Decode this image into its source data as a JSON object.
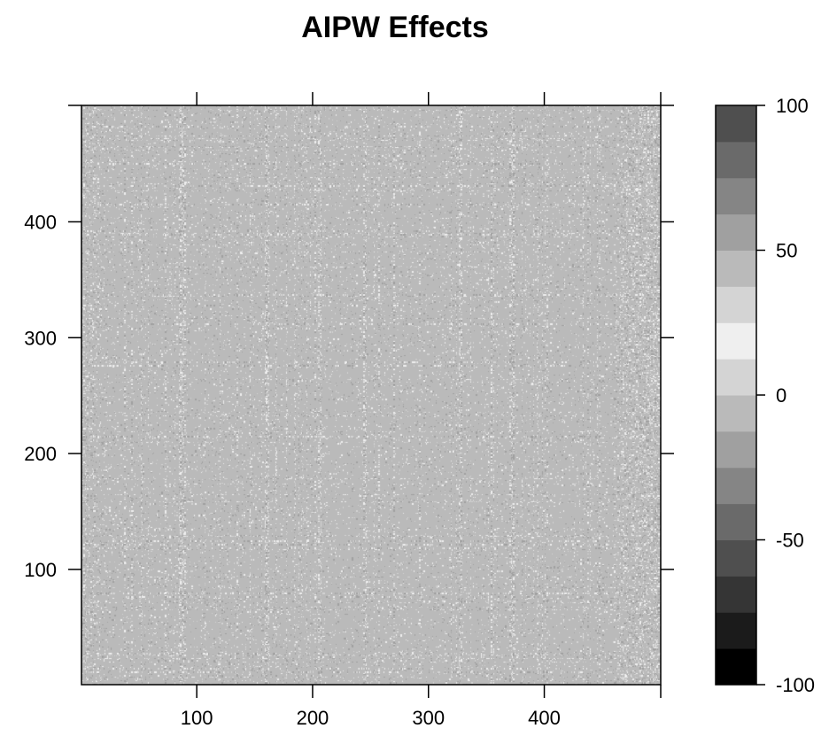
{
  "chart_data": {
    "type": "heatmap",
    "title": "AIPW Effects",
    "xlabel": "",
    "ylabel": "",
    "xlim": [
      1,
      500
    ],
    "ylim": [
      1,
      500
    ],
    "x_ticks": [
      100,
      200,
      300,
      400
    ],
    "y_ticks": [
      100,
      200,
      300,
      400
    ],
    "x_tick_labels": [
      "100",
      "200",
      "300",
      "400"
    ],
    "y_tick_labels": [
      "100",
      "200",
      "300",
      "400"
    ],
    "n_rows": 500,
    "n_cols": 500,
    "value_range": [
      -100,
      100
    ],
    "typical_value_range": [
      -10,
      10
    ],
    "background_value": 0,
    "dense_columns": [
      86,
      89,
      161,
      206,
      245,
      327,
      372
    ],
    "dense_rows": [
      85,
      233,
      264,
      361,
      427
    ],
    "colorbar": {
      "ticks": [
        100,
        50,
        0,
        -50,
        -100
      ],
      "tick_labels": [
        "100",
        "50",
        "0",
        "-50",
        "-100"
      ],
      "levels": [
        -100,
        -87.5,
        -75,
        -62.5,
        -50,
        -37.5,
        -25,
        -12.5,
        0,
        12.5,
        25,
        37.5,
        50,
        62.5,
        75,
        87.5,
        100
      ],
      "colors": [
        "#000000",
        "#1b1b1b",
        "#353535",
        "#4f4f4f",
        "#6a6a6a",
        "#858585",
        "#a0a0a0",
        "#bababa",
        "#d4d4d4",
        "#efefef",
        "#d4d4d4",
        "#bababa",
        "#a0a0a0",
        "#858585",
        "#6a6a6a",
        "#4f4f4f",
        "#353535",
        "#1b1b1b",
        "#000000"
      ],
      "palette": "grayscale, symmetric about 0 (light at 0, dark at ±100)"
    },
    "grid": false,
    "legend": "colorbar right"
  }
}
